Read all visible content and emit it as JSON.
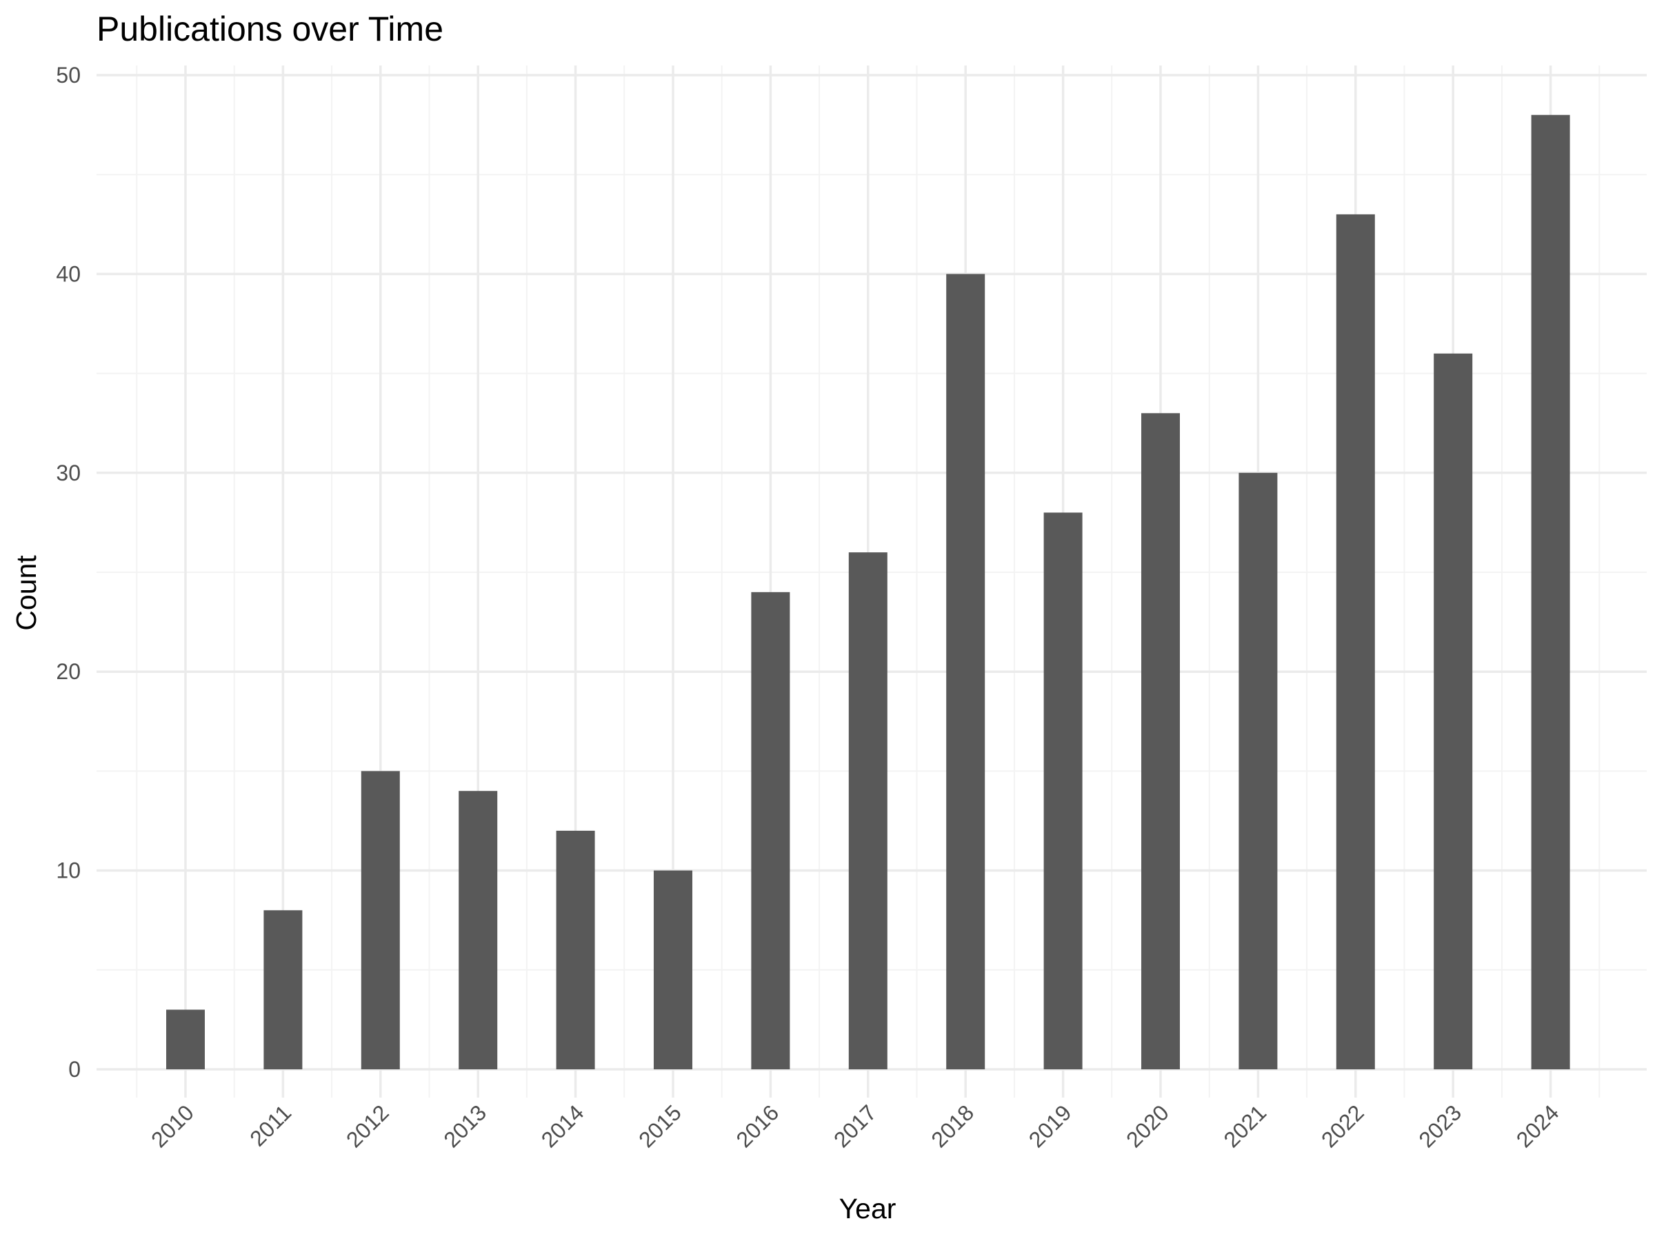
{
  "chart_data": {
    "type": "bar",
    "title": "Publications over Time",
    "xlabel": "Year",
    "ylabel": "Count",
    "categories": [
      "2010",
      "2011",
      "2012",
      "2013",
      "2014",
      "2015",
      "2016",
      "2017",
      "2018",
      "2019",
      "2020",
      "2021",
      "2022",
      "2023",
      "2024"
    ],
    "values": [
      3,
      8,
      15,
      14,
      12,
      10,
      24,
      26,
      40,
      28,
      33,
      30,
      43,
      36,
      48
    ],
    "ylim": [
      0,
      50
    ],
    "yticks": [
      0,
      10,
      20,
      30,
      40,
      50
    ],
    "grid": true,
    "legend": "none",
    "colors": {
      "bar": "#595959",
      "grid_major": "#ebebeb",
      "grid_minor": "#f3f3f3",
      "tick_text": "#4d4d4d",
      "background": "#ffffff"
    }
  }
}
